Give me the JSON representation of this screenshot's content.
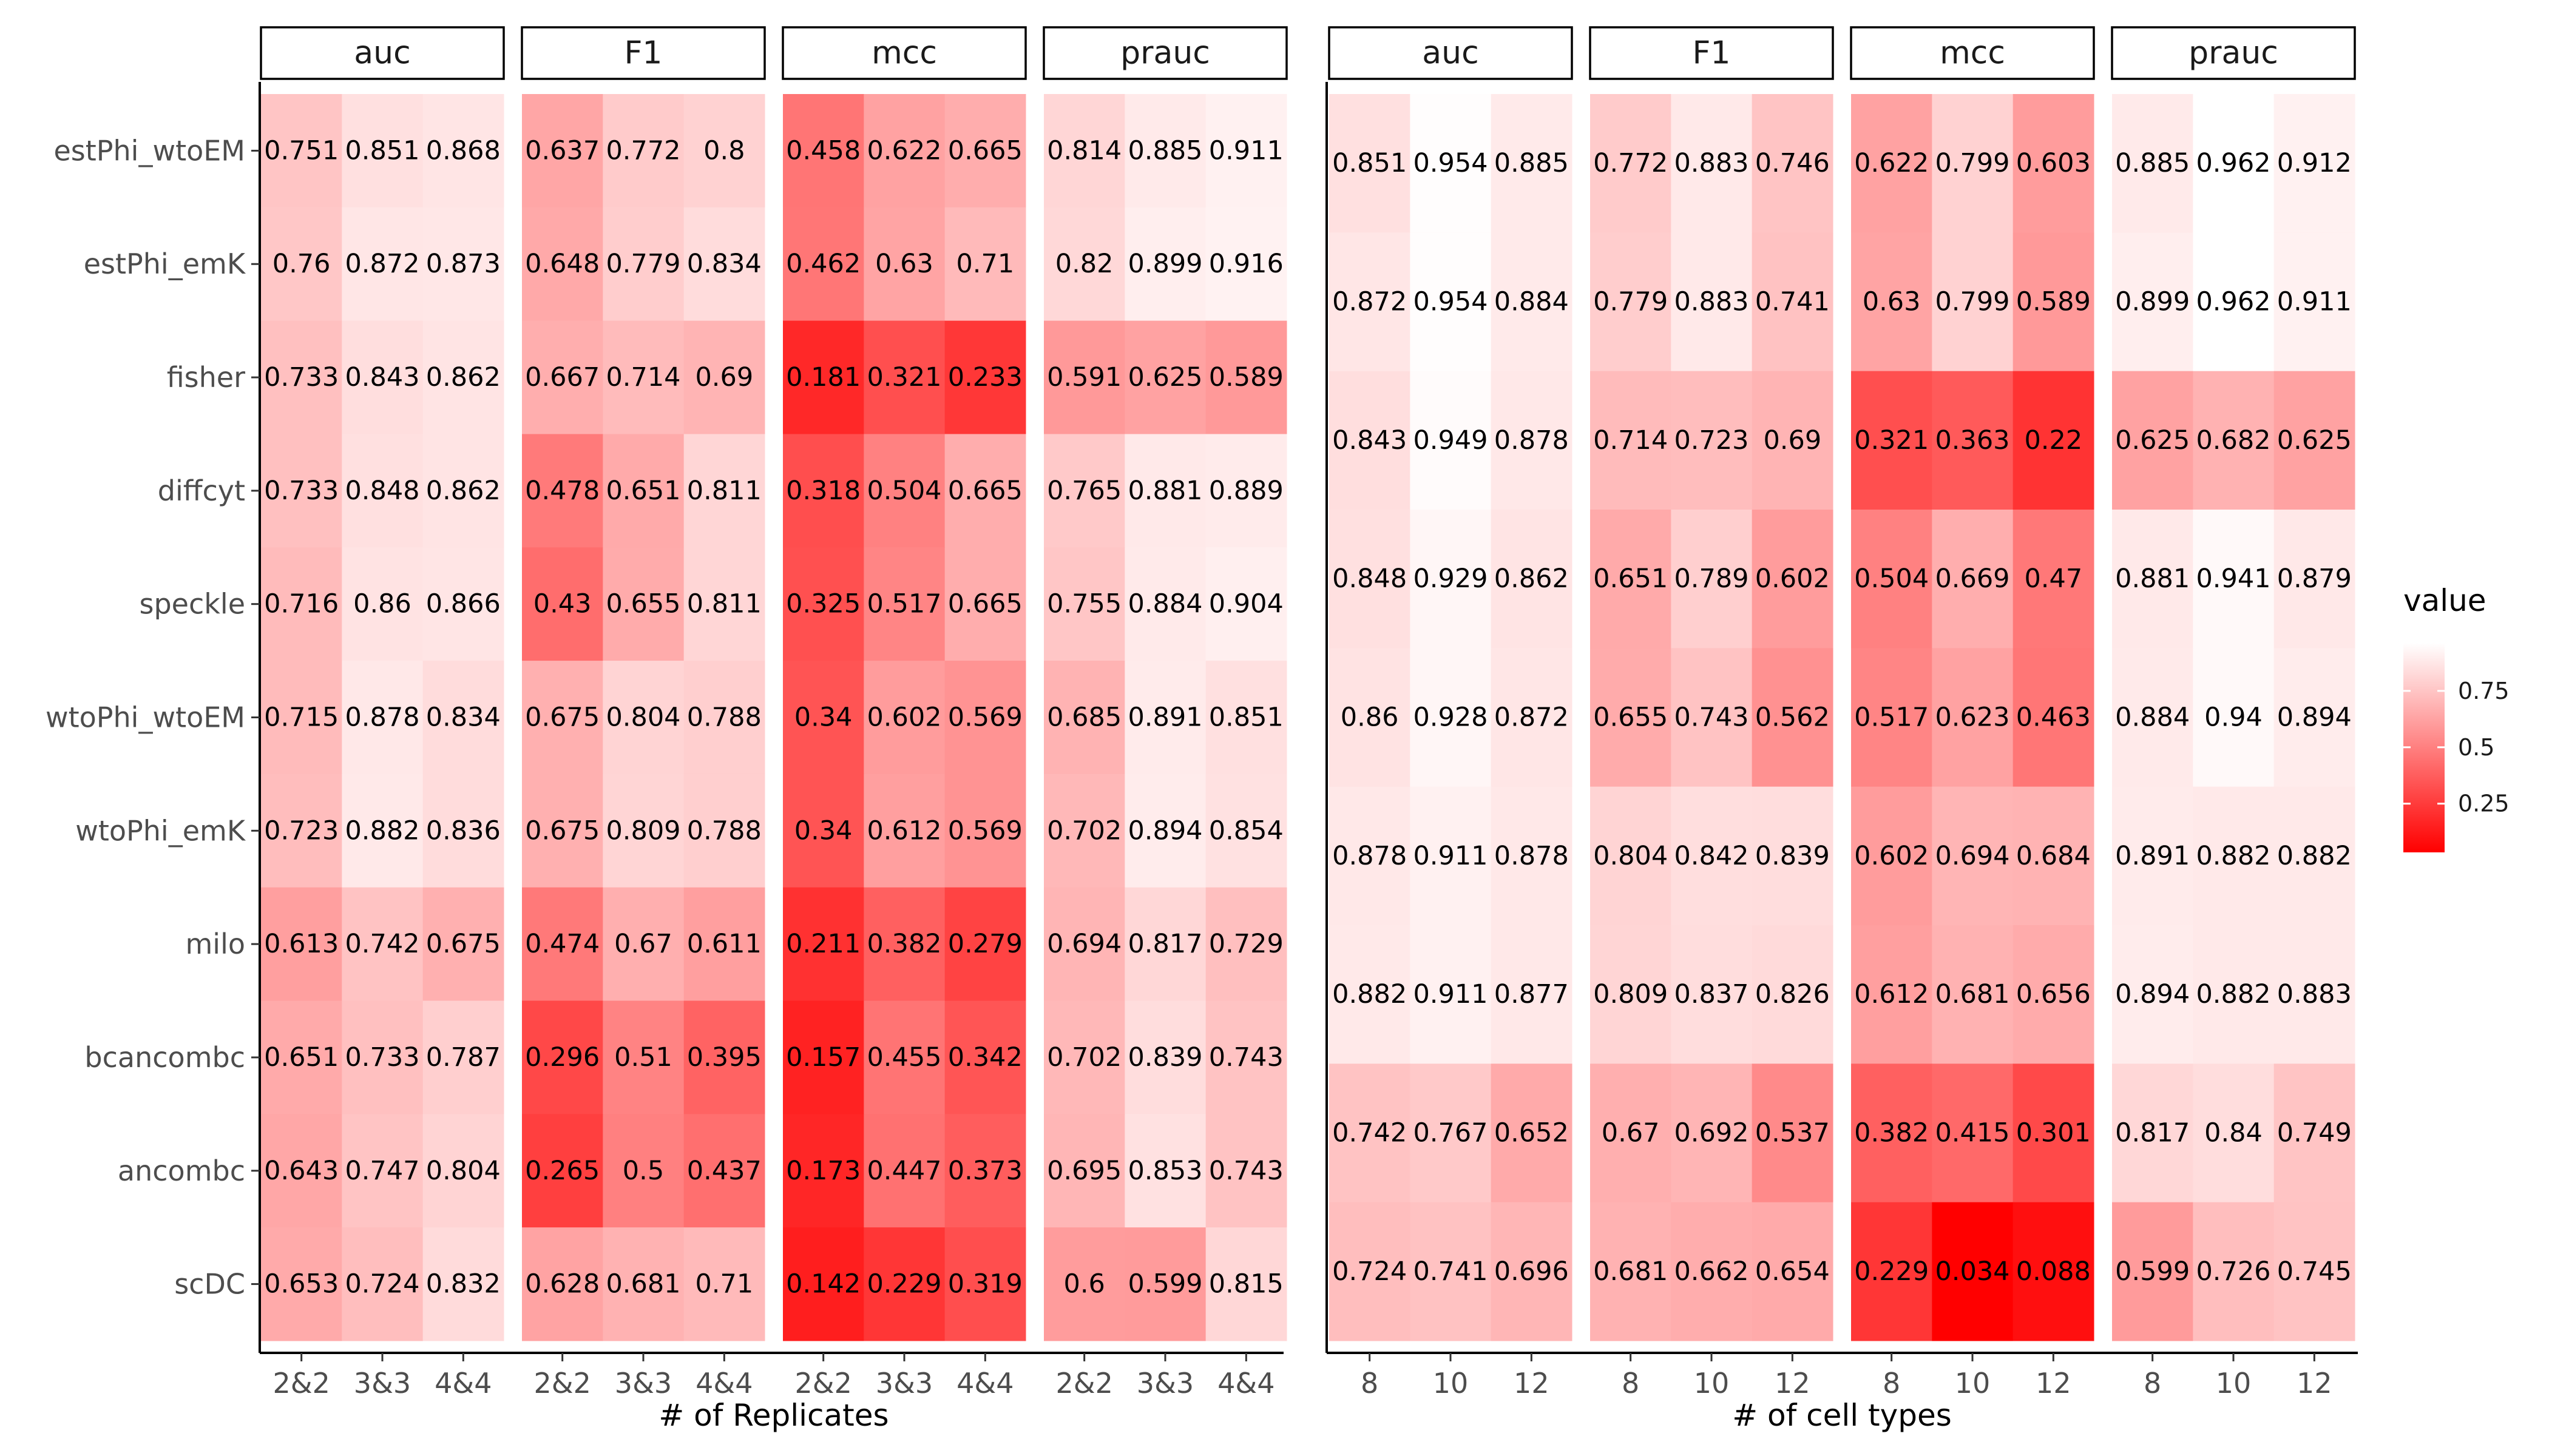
{
  "chart_data": {
    "type": "heatmap",
    "legend": {
      "title": "value",
      "ticks": [
        0.25,
        0.5,
        0.75
      ],
      "range": [
        0.034,
        0.962
      ],
      "low_color": "#ff0000",
      "high_color": "#ffffff"
    },
    "panel_groups": [
      {
        "xlabel": "# of Replicates",
        "row_labels": [
          "estPhi_wtoEM",
          "estPhi_emK",
          "fisher",
          "diffcyt",
          "speckle",
          "wtoPhi_wtoEM",
          "wtoPhi_emK",
          "milo",
          "bcancombc",
          "ancombc",
          "scDC"
        ],
        "x": [
          "2&2",
          "3&3",
          "4&4"
        ],
        "facets": [
          {
            "metric": "auc",
            "values": [
              [
                0.751,
                0.851,
                0.868
              ],
              [
                0.76,
                0.872,
                0.873
              ],
              [
                0.733,
                0.843,
                0.862
              ],
              [
                0.733,
                0.848,
                0.862
              ],
              [
                0.716,
                0.86,
                0.866
              ],
              [
                0.715,
                0.878,
                0.834
              ],
              [
                0.723,
                0.882,
                0.836
              ],
              [
                0.613,
                0.742,
                0.675
              ],
              [
                0.651,
                0.733,
                0.787
              ],
              [
                0.643,
                0.747,
                0.804
              ],
              [
                0.653,
                0.724,
                0.832
              ]
            ]
          },
          {
            "metric": "F1",
            "values": [
              [
                0.637,
                0.772,
                0.8
              ],
              [
                0.648,
                0.779,
                0.834
              ],
              [
                0.667,
                0.714,
                0.69
              ],
              [
                0.478,
                0.651,
                0.811
              ],
              [
                0.43,
                0.655,
                0.811
              ],
              [
                0.675,
                0.804,
                0.788
              ],
              [
                0.675,
                0.809,
                0.788
              ],
              [
                0.474,
                0.67,
                0.611
              ],
              [
                0.296,
                0.51,
                0.395
              ],
              [
                0.265,
                0.5,
                0.437
              ],
              [
                0.628,
                0.681,
                0.71
              ]
            ]
          },
          {
            "metric": "mcc",
            "values": [
              [
                0.458,
                0.622,
                0.665
              ],
              [
                0.462,
                0.63,
                0.71
              ],
              [
                0.181,
                0.321,
                0.233
              ],
              [
                0.318,
                0.504,
                0.665
              ],
              [
                0.325,
                0.517,
                0.665
              ],
              [
                0.34,
                0.602,
                0.569
              ],
              [
                0.34,
                0.612,
                0.569
              ],
              [
                0.211,
                0.382,
                0.279
              ],
              [
                0.157,
                0.455,
                0.342
              ],
              [
                0.173,
                0.447,
                0.373
              ],
              [
                0.142,
                0.229,
                0.319
              ]
            ]
          },
          {
            "metric": "prauc",
            "values": [
              [
                0.814,
                0.885,
                0.911
              ],
              [
                0.82,
                0.899,
                0.916
              ],
              [
                0.591,
                0.625,
                0.589
              ],
              [
                0.765,
                0.881,
                0.889
              ],
              [
                0.755,
                0.884,
                0.904
              ],
              [
                0.685,
                0.891,
                0.851
              ],
              [
                0.702,
                0.894,
                0.854
              ],
              [
                0.694,
                0.817,
                0.729
              ],
              [
                0.702,
                0.839,
                0.743
              ],
              [
                0.695,
                0.853,
                0.743
              ],
              [
                0.6,
                0.599,
                0.815
              ]
            ]
          }
        ]
      },
      {
        "xlabel": "# of cell types",
        "x": [
          "8",
          "10",
          "12"
        ],
        "facets": [
          {
            "metric": "auc",
            "values": [
              [
                0.851,
                0.954,
                0.885
              ],
              [
                0.872,
                0.954,
                0.884
              ],
              [
                0.843,
                0.949,
                0.878
              ],
              [
                0.848,
                0.929,
                0.862
              ],
              [
                0.86,
                0.928,
                0.872
              ],
              [
                0.878,
                0.911,
                0.878
              ],
              [
                0.882,
                0.911,
                0.877
              ],
              [
                0.742,
                0.767,
                0.652
              ],
              [
                0.724,
                0.741,
                0.696
              ]
            ]
          },
          {
            "metric": "F1",
            "values": [
              [
                0.772,
                0.883,
                0.746
              ],
              [
                0.779,
                0.883,
                0.741
              ],
              [
                0.714,
                0.723,
                0.69
              ],
              [
                0.651,
                0.789,
                0.602
              ],
              [
                0.655,
                0.743,
                0.562
              ],
              [
                0.804,
                0.842,
                0.839
              ],
              [
                0.809,
                0.837,
                0.826
              ],
              [
                0.67,
                0.692,
                0.537
              ],
              [
                0.681,
                0.662,
                0.654
              ]
            ]
          },
          {
            "metric": "mcc",
            "values": [
              [
                0.622,
                0.799,
                0.603
              ],
              [
                0.63,
                0.799,
                0.589
              ],
              [
                0.321,
                0.363,
                0.22
              ],
              [
                0.504,
                0.669,
                0.47
              ],
              [
                0.517,
                0.623,
                0.463
              ],
              [
                0.602,
                0.694,
                0.684
              ],
              [
                0.612,
                0.681,
                0.656
              ],
              [
                0.382,
                0.415,
                0.301
              ],
              [
                0.229,
                0.034,
                0.088
              ]
            ]
          },
          {
            "metric": "prauc",
            "values": [
              [
                0.885,
                0.962,
                0.912
              ],
              [
                0.899,
                0.962,
                0.911
              ],
              [
                0.625,
                0.682,
                0.625
              ],
              [
                0.881,
                0.941,
                0.879
              ],
              [
                0.884,
                0.94,
                0.894
              ],
              [
                0.891,
                0.882,
                0.882
              ],
              [
                0.894,
                0.882,
                0.883
              ],
              [
                0.817,
                0.84,
                0.749
              ],
              [
                0.599,
                0.726,
                0.745
              ]
            ]
          }
        ]
      }
    ]
  }
}
